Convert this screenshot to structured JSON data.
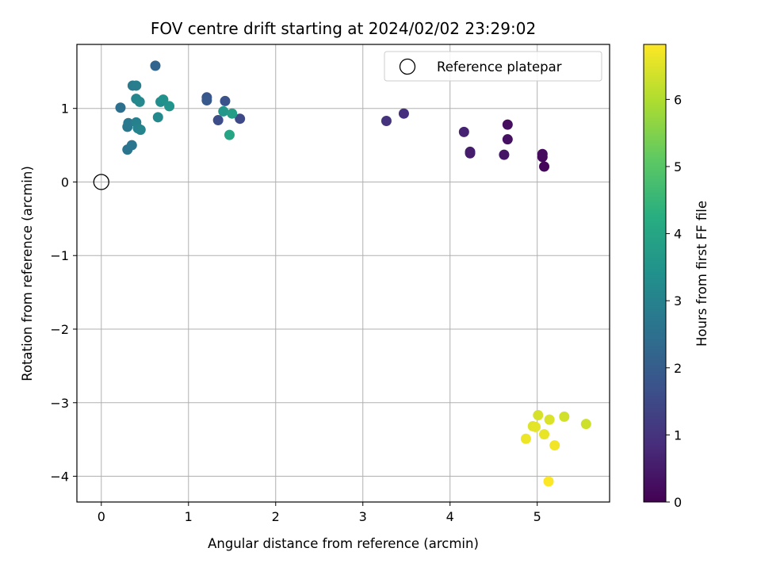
{
  "chart_data": {
    "type": "scatter",
    "title": "FOV centre drift starting at 2024/02/02 23:29:02",
    "xlabel": "Angular distance from reference (arcmin)",
    "ylabel": "Rotation from reference (arcmin)",
    "xlim": [
      -0.28,
      5.83
    ],
    "ylim": [
      -4.35,
      1.87
    ],
    "xticks": [
      0,
      1,
      2,
      3,
      4,
      5
    ],
    "yticks": [
      -4,
      -3,
      -2,
      -1,
      0,
      1
    ],
    "xtick_labels": [
      "0",
      "1",
      "2",
      "3",
      "4",
      "5"
    ],
    "ytick_labels": [
      "−4",
      "−3",
      "−2",
      "−1",
      "0",
      "1"
    ],
    "grid": true,
    "legend": {
      "placement": "top-right",
      "entries": [
        "Reference platepar"
      ]
    },
    "reference": {
      "x": 0,
      "y": 0
    },
    "colorbar": {
      "label": "Hours from first FF file",
      "range": [
        0,
        6.82
      ],
      "ticks": [
        0,
        1,
        2,
        3,
        4,
        5,
        6
      ],
      "tick_labels": [
        "0",
        "1",
        "2",
        "3",
        "4",
        "5",
        "6"
      ],
      "colormap": "viridis"
    },
    "points": [
      {
        "x": 5.08,
        "y": 0.21,
        "h": 0.1
      },
      {
        "x": 5.06,
        "y": 0.34,
        "h": 0.15
      },
      {
        "x": 5.06,
        "y": 0.38,
        "h": 0.2
      },
      {
        "x": 4.66,
        "y": 0.78,
        "h": 0.25
      },
      {
        "x": 4.66,
        "y": 0.58,
        "h": 0.3
      },
      {
        "x": 4.62,
        "y": 0.37,
        "h": 0.4
      },
      {
        "x": 4.23,
        "y": 0.39,
        "h": 0.5
      },
      {
        "x": 4.23,
        "y": 0.41,
        "h": 0.55
      },
      {
        "x": 4.16,
        "y": 0.68,
        "h": 0.65
      },
      {
        "x": 3.47,
        "y": 0.93,
        "h": 0.9
      },
      {
        "x": 3.27,
        "y": 0.83,
        "h": 1.0
      },
      {
        "x": 1.59,
        "y": 0.86,
        "h": 1.5
      },
      {
        "x": 1.34,
        "y": 0.84,
        "h": 1.6
      },
      {
        "x": 1.42,
        "y": 1.1,
        "h": 1.75
      },
      {
        "x": 1.21,
        "y": 1.15,
        "h": 1.8
      },
      {
        "x": 1.21,
        "y": 1.11,
        "h": 1.9
      },
      {
        "x": 0.62,
        "y": 1.58,
        "h": 2.2
      },
      {
        "x": 0.22,
        "y": 1.01,
        "h": 2.5
      },
      {
        "x": 0.3,
        "y": 0.44,
        "h": 2.6
      },
      {
        "x": 0.35,
        "y": 0.5,
        "h": 2.65
      },
      {
        "x": 0.3,
        "y": 0.75,
        "h": 2.7
      },
      {
        "x": 0.31,
        "y": 0.8,
        "h": 2.75
      },
      {
        "x": 0.36,
        "y": 1.31,
        "h": 2.8
      },
      {
        "x": 0.4,
        "y": 1.31,
        "h": 2.9
      },
      {
        "x": 0.4,
        "y": 0.81,
        "h": 2.95
      },
      {
        "x": 0.42,
        "y": 0.73,
        "h": 3.0
      },
      {
        "x": 0.45,
        "y": 0.71,
        "h": 3.05
      },
      {
        "x": 0.4,
        "y": 1.13,
        "h": 3.1
      },
      {
        "x": 0.44,
        "y": 1.09,
        "h": 3.15
      },
      {
        "x": 0.65,
        "y": 0.88,
        "h": 3.2
      },
      {
        "x": 0.68,
        "y": 1.09,
        "h": 3.3
      },
      {
        "x": 0.71,
        "y": 1.12,
        "h": 3.4
      },
      {
        "x": 0.78,
        "y": 1.03,
        "h": 3.5
      },
      {
        "x": 1.4,
        "y": 0.96,
        "h": 3.6
      },
      {
        "x": 1.5,
        "y": 0.93,
        "h": 3.75
      },
      {
        "x": 1.47,
        "y": 0.64,
        "h": 4.0
      },
      {
        "x": 5.56,
        "y": -3.29,
        "h": 6.3
      },
      {
        "x": 5.31,
        "y": -3.19,
        "h": 6.35
      },
      {
        "x": 5.01,
        "y": -3.17,
        "h": 6.4
      },
      {
        "x": 5.14,
        "y": -3.23,
        "h": 6.45
      },
      {
        "x": 4.95,
        "y": -3.32,
        "h": 6.5
      },
      {
        "x": 4.98,
        "y": -3.33,
        "h": 6.55
      },
      {
        "x": 5.08,
        "y": -3.43,
        "h": 6.6
      },
      {
        "x": 4.87,
        "y": -3.49,
        "h": 6.65
      },
      {
        "x": 5.2,
        "y": -3.58,
        "h": 6.7
      },
      {
        "x": 5.13,
        "y": -4.07,
        "h": 6.8
      }
    ]
  }
}
